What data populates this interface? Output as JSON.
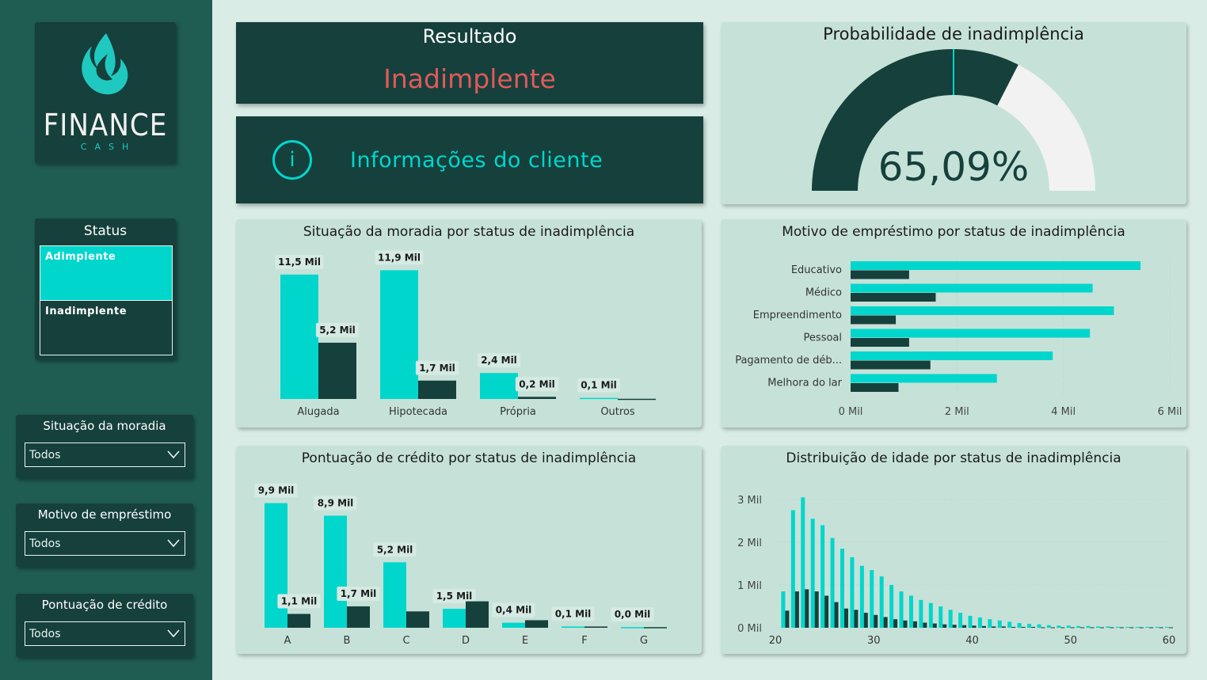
{
  "sidebar": {
    "logo": {
      "brand": "FINANCE",
      "sub": "CASH"
    },
    "status": {
      "title": "Status",
      "options": [
        {
          "label": "Adimplente",
          "selected": true
        },
        {
          "label": "Inadimplente",
          "selected": false
        }
      ]
    },
    "filters": [
      {
        "title": "Situação da moradia",
        "value": "Todos"
      },
      {
        "title": "Motivo de empréstimo",
        "value": "Todos"
      },
      {
        "title": "Pontuação de crédito",
        "value": "Todos"
      }
    ]
  },
  "result": {
    "title": "Resultado",
    "value": "Inadimplente"
  },
  "info": {
    "label": "Informações do cliente",
    "icon": "info-icon"
  },
  "gauge": {
    "title": "Probabilidade de inadimplência",
    "value_label": "65,09%",
    "value": 0.6509,
    "target": 0.5
  },
  "colors": {
    "teal": "#00d6cc",
    "dark": "#16403c",
    "grey": "#f2f2f2",
    "negative": "#e05a5a"
  },
  "chart_data": [
    {
      "id": "moradia",
      "type": "bar",
      "title": "Situação da moradia por status de inadimplência",
      "categories": [
        "Alugada",
        "Hipotecada",
        "Própria",
        "Outros"
      ],
      "series": [
        {
          "values": [
            11.5,
            11.9,
            2.4,
            0.1
          ],
          "labels": [
            "11,5 Mil",
            "11,9 Mil",
            "2,4 Mil",
            "0,1 Mil"
          ],
          "color": "#00d6cc"
        },
        {
          "values": [
            5.2,
            1.7,
            0.2,
            0.02
          ],
          "labels": [
            "5,2 Mil",
            "1,7 Mil",
            "0,2 Mil",
            ""
          ],
          "color": "#16403c"
        }
      ],
      "ylim": [
        0,
        12
      ]
    },
    {
      "id": "motivo",
      "type": "bar",
      "orientation": "horizontal",
      "title": "Motivo de empréstimo por status de inadimplência",
      "categories": [
        "Educativo",
        "Médico",
        "Empreendimento",
        "Pessoal",
        "Pagamento de déb...",
        "Melhora do lar"
      ],
      "series": [
        {
          "values": [
            5.45,
            4.55,
            4.95,
            4.5,
            3.8,
            2.75
          ],
          "color": "#00d6cc"
        },
        {
          "values": [
            1.1,
            1.6,
            0.85,
            1.1,
            1.5,
            0.9
          ],
          "color": "#16403c"
        }
      ],
      "xticks": [
        "0 Mil",
        "2 Mil",
        "4 Mil",
        "6 Mil"
      ],
      "xlim": [
        0,
        6
      ]
    },
    {
      "id": "credito",
      "type": "bar",
      "title": "Pontuação de crédito por status de inadimplência",
      "categories": [
        "A",
        "B",
        "C",
        "D",
        "E",
        "F",
        "G"
      ],
      "series": [
        {
          "values": [
            9.9,
            8.9,
            5.2,
            1.5,
            0.4,
            0.1,
            0.05
          ],
          "labels": [
            "9,9 Mil",
            "8,9 Mil",
            "5,2 Mil",
            "1,5 Mil",
            "0,4 Mil",
            "0,1 Mil",
            "0,0 Mil"
          ],
          "color": "#00d6cc"
        },
        {
          "values": [
            1.1,
            1.7,
            1.3,
            2.1,
            0.6,
            0.1,
            0.05
          ],
          "labels": [
            "1,1 Mil",
            "1,7 Mil",
            "",
            "",
            "",
            "",
            ""
          ],
          "color": "#16403c"
        }
      ],
      "ylim": [
        0,
        10.5
      ]
    },
    {
      "id": "idade",
      "type": "bar",
      "title": "Distribuição de idade por status de inadimplência",
      "x": [
        21,
        22,
        23,
        24,
        25,
        26,
        27,
        28,
        29,
        30,
        31,
        32,
        33,
        34,
        35,
        36,
        37,
        38,
        39,
        40,
        41,
        42,
        43,
        44,
        45,
        46,
        47,
        48,
        49,
        50,
        51,
        52,
        53,
        54,
        55,
        56,
        57,
        58,
        59,
        60
      ],
      "series": [
        {
          "values": [
            0.85,
            2.75,
            3.05,
            2.55,
            2.4,
            2.1,
            1.85,
            1.65,
            1.45,
            1.35,
            1.2,
            1.0,
            0.85,
            0.75,
            0.65,
            0.58,
            0.5,
            0.42,
            0.35,
            0.28,
            0.24,
            0.2,
            0.17,
            0.14,
            0.11,
            0.09,
            0.08,
            0.06,
            0.05,
            0.05,
            0.04,
            0.04,
            0.03,
            0.03,
            0.02,
            0.02,
            0.02,
            0.02,
            0.02,
            0.02
          ],
          "color": "#00d6cc"
        },
        {
          "values": [
            0.4,
            0.85,
            0.9,
            0.85,
            0.75,
            0.6,
            0.45,
            0.42,
            0.35,
            0.3,
            0.25,
            0.2,
            0.17,
            0.15,
            0.12,
            0.1,
            0.08,
            0.07,
            0.06,
            0.05,
            0.04,
            0.03,
            0.03,
            0.02,
            0.02,
            0.02,
            0.01,
            0.01,
            0.01,
            0.01,
            0.01,
            0.01,
            0.01,
            0.01,
            0.01,
            0.01,
            0.01,
            0.01,
            0.01,
            0.01
          ],
          "color": "#16403c"
        }
      ],
      "yticks": [
        "0 Mil",
        "1 Mil",
        "2 Mil",
        "3 Mil"
      ],
      "xticks": [
        "20",
        "30",
        "40",
        "50",
        "60"
      ],
      "xlim": [
        20,
        60
      ],
      "ylim": [
        0,
        3
      ]
    }
  ]
}
